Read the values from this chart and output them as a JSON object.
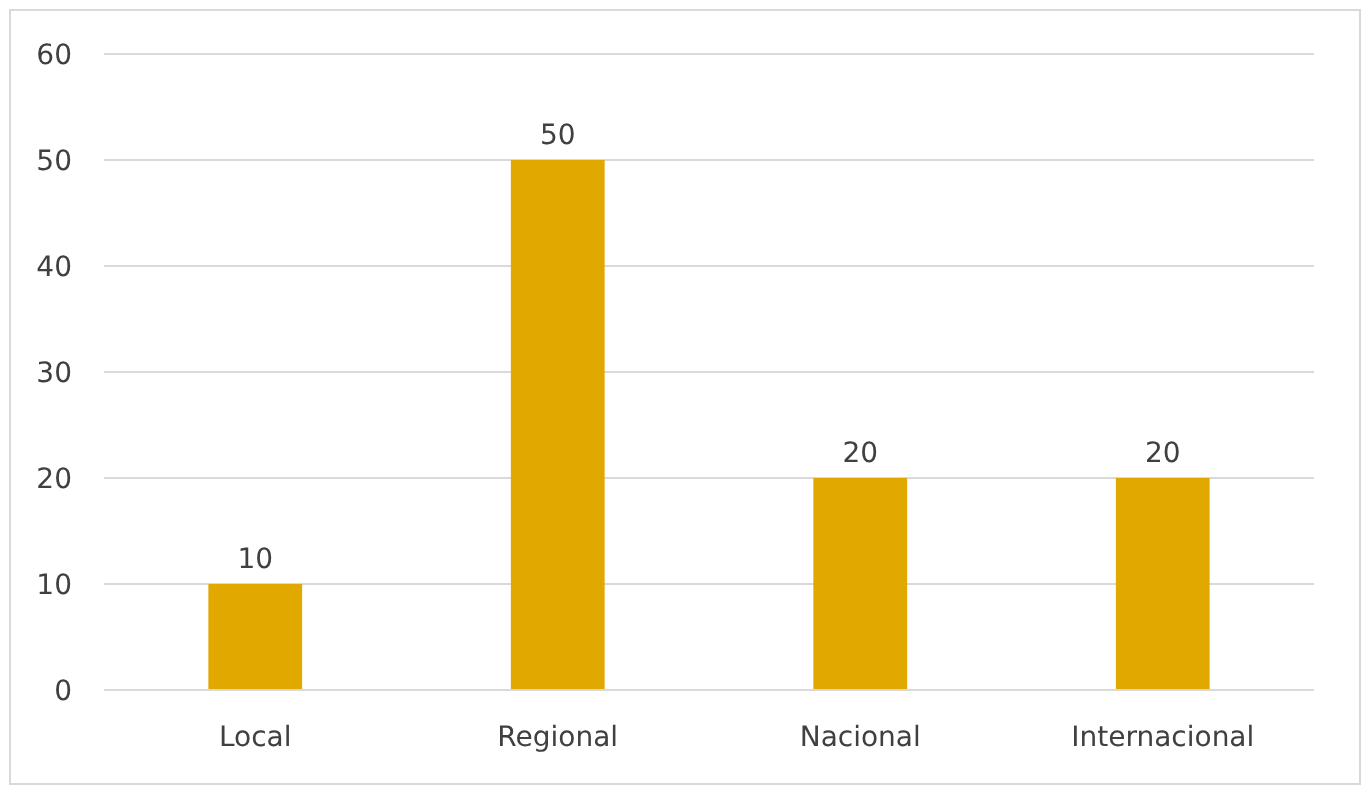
{
  "chart_data": {
    "type": "bar",
    "categories": [
      "Local",
      "Regional",
      "Nacional",
      "Internacional"
    ],
    "values": [
      10,
      50,
      20,
      20
    ],
    "color": "#e1a900",
    "ylim": [
      0,
      60
    ],
    "yticks": [
      0,
      10,
      20,
      30,
      40,
      50,
      60
    ],
    "grid": "y",
    "data_labels": true
  }
}
